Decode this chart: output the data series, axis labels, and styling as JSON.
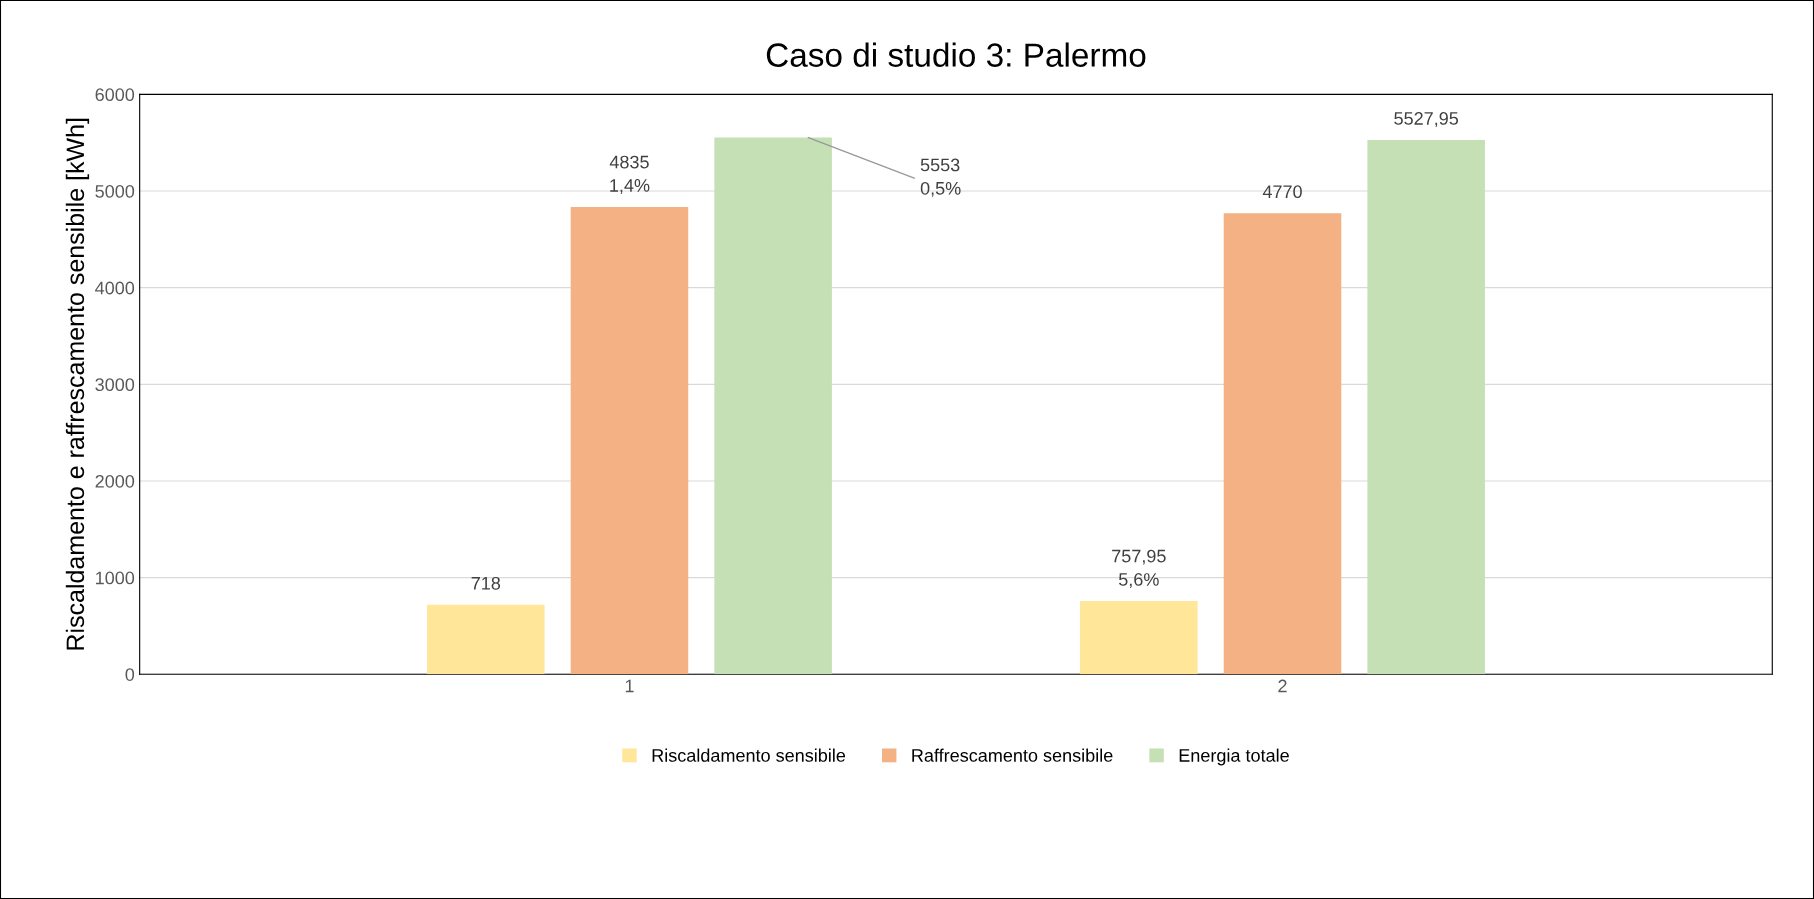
{
  "chart_data": {
    "type": "bar",
    "title": "Caso di studio 3: Palermo",
    "ylabel": "Riscaldamento e raffrescamento sensibile [kWh]",
    "categories": [
      "1",
      "2"
    ],
    "series": [
      {
        "name": "Riscaldamento sensibile",
        "color": "#ffe699",
        "values": [
          718,
          757.95
        ],
        "value_labels": [
          "718",
          "757,95\n5,6%"
        ]
      },
      {
        "name": "Raffrescamento sensibile",
        "color": "#f4b183",
        "values": [
          4835,
          4770
        ],
        "value_labels": [
          "4835\n1,4%",
          "4770"
        ]
      },
      {
        "name": "Energia totale",
        "color": "#c5e0b4",
        "values": [
          5553,
          5527.95
        ],
        "value_labels": [
          "5553\n0,5%",
          "5527,95"
        ]
      }
    ],
    "ylim": [
      0,
      6000
    ],
    "yticks": [
      0,
      1000,
      2000,
      3000,
      4000,
      5000,
      6000
    ],
    "grid": "y",
    "legend": "bottom"
  }
}
